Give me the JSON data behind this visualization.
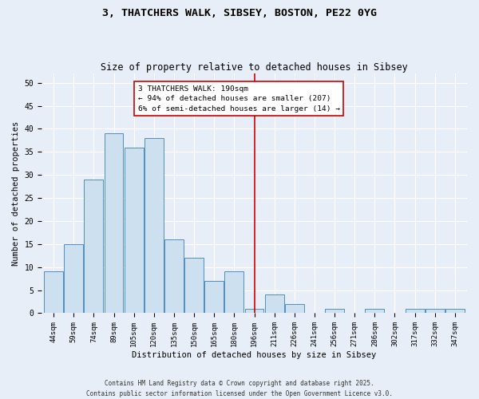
{
  "title_line1": "3, THATCHERS WALK, SIBSEY, BOSTON, PE22 0YG",
  "title_line2": "Size of property relative to detached houses in Sibsey",
  "xlabel": "Distribution of detached houses by size in Sibsey",
  "ylabel": "Number of detached properties",
  "categories": [
    "44sqm",
    "59sqm",
    "74sqm",
    "89sqm",
    "105sqm",
    "120sqm",
    "135sqm",
    "150sqm",
    "165sqm",
    "180sqm",
    "196sqm",
    "211sqm",
    "226sqm",
    "241sqm",
    "256sqm",
    "271sqm",
    "286sqm",
    "302sqm",
    "317sqm",
    "332sqm",
    "347sqm"
  ],
  "values": [
    9,
    15,
    29,
    39,
    36,
    38,
    16,
    12,
    7,
    9,
    1,
    4,
    2,
    0,
    1,
    0,
    1,
    0,
    1,
    1,
    1
  ],
  "bar_color": "#cde0f0",
  "bar_edge_color": "#4f8fbf",
  "vline_x_index": 10,
  "vline_color": "#cc0000",
  "annotation_text": "3 THATCHERS WALK: 190sqm\n← 94% of detached houses are smaller (207)\n6% of semi-detached houses are larger (14) →",
  "annotation_box_color": "#ffffff",
  "annotation_box_edge": "#cc0000",
  "ylim": [
    0,
    52
  ],
  "yticks": [
    0,
    5,
    10,
    15,
    20,
    25,
    30,
    35,
    40,
    45,
    50
  ],
  "background_color": "#e8eef8",
  "grid_color": "#ffffff",
  "footer": "Contains HM Land Registry data © Crown copyright and database right 2025.\nContains public sector information licensed under the Open Government Licence v3.0.",
  "title_fontsize": 9.5,
  "subtitle_fontsize": 8.5,
  "tick_fontsize": 6.5,
  "ylabel_fontsize": 7.5,
  "xlabel_fontsize": 7.5,
  "annotation_fontsize": 6.8,
  "footer_fontsize": 5.5
}
